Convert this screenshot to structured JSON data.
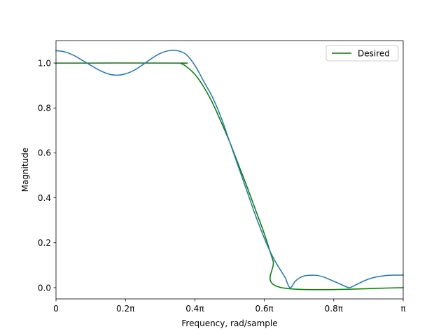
{
  "chart_data": {
    "type": "line",
    "xlabel": "Frequency, rad/sample",
    "ylabel": "Magnitude",
    "xlim": [
      0,
      1
    ],
    "ylim": [
      -0.05,
      1.1
    ],
    "x_unit": "pi rad/sample",
    "x_ticks": [
      {
        "value": 0,
        "label": "0"
      },
      {
        "value": 0.2,
        "label": "0.2π"
      },
      {
        "value": 0.4,
        "label": "0.4π"
      },
      {
        "value": 0.6,
        "label": "0.6π"
      },
      {
        "value": 0.8,
        "label": "0.8π"
      },
      {
        "value": 1.0,
        "label": "π"
      }
    ],
    "y_ticks": [
      {
        "value": 0.0,
        "label": "0.0"
      },
      {
        "value": 0.2,
        "label": "0.2"
      },
      {
        "value": 0.4,
        "label": "0.4"
      },
      {
        "value": 0.6,
        "label": "0.6"
      },
      {
        "value": 0.8,
        "label": "0.8"
      },
      {
        "value": 1.0,
        "label": "1.0"
      }
    ],
    "grid": false,
    "legend_position": "top-right",
    "series": [
      {
        "color": "#1f77b4",
        "in_legend": false,
        "x": [
          0,
          0.025,
          0.05,
          0.075,
          0.1,
          0.125,
          0.15,
          0.175,
          0.2,
          0.225,
          0.25,
          0.275,
          0.3,
          0.325,
          0.35,
          0.375,
          0.4,
          0.425,
          0.45,
          0.475,
          0.5,
          0.525,
          0.55,
          0.575,
          0.6,
          0.625,
          0.65,
          0.66,
          0.674,
          0.69,
          0.71,
          0.73,
          0.75,
          0.77,
          0.79,
          0.81,
          0.83,
          0.845,
          0.86,
          0.88,
          0.9,
          0.92,
          0.94,
          0.96,
          0.98,
          1.0
        ],
        "values": [
          1.055,
          1.05,
          1.035,
          1.013,
          0.99,
          0.968,
          0.952,
          0.946,
          0.952,
          0.968,
          0.993,
          1.02,
          1.043,
          1.055,
          1.055,
          1.038,
          0.99,
          0.92,
          0.85,
          0.76,
          0.65,
          0.54,
          0.43,
          0.32,
          0.22,
          0.135,
          0.07,
          0.045,
          0.0,
          0.03,
          0.05,
          0.055,
          0.055,
          0.048,
          0.035,
          0.022,
          0.008,
          0.0,
          0.01,
          0.025,
          0.038,
          0.047,
          0.052,
          0.055,
          0.056,
          0.056
        ]
      },
      {
        "name": "Desired",
        "color": "#008000",
        "in_legend": true,
        "x": [
          0,
          0.35,
          0.36,
          0.375,
          0.4,
          0.425,
          0.45,
          0.475,
          0.5,
          0.525,
          0.55,
          0.575,
          0.6,
          0.625,
          0.65,
          1.0
        ],
        "values": [
          1.0,
          1.0,
          0.998,
          0.985,
          0.95,
          0.895,
          0.825,
          0.74,
          0.65,
          0.55,
          0.45,
          0.345,
          0.24,
          0.12,
          0.0,
          0.0
        ]
      }
    ]
  }
}
